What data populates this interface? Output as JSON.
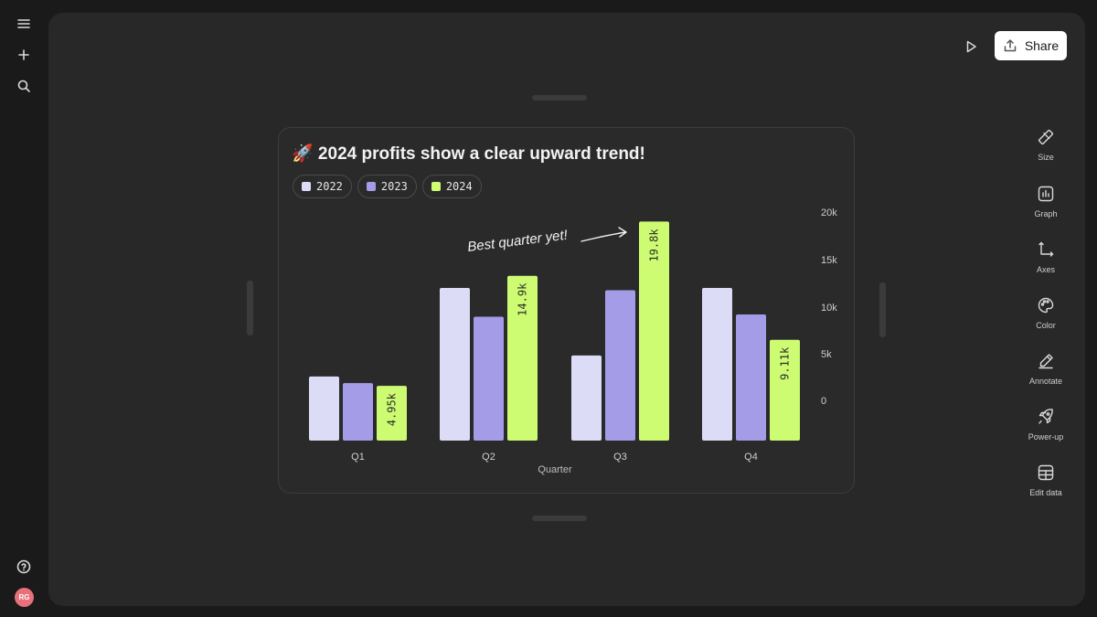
{
  "toolbar": {
    "share_label": "Share"
  },
  "user": {
    "initials": "RG",
    "avatar_color": "#e8707a"
  },
  "right_tools": [
    {
      "label": "Size",
      "icon": "ruler-icon"
    },
    {
      "label": "Graph",
      "icon": "bar-chart-icon"
    },
    {
      "label": "Axes",
      "icon": "axes-icon"
    },
    {
      "label": "Color",
      "icon": "palette-icon"
    },
    {
      "label": "Annotate",
      "icon": "pencil-icon"
    },
    {
      "label": "Power-up",
      "icon": "rocket-icon"
    },
    {
      "label": "Edit data",
      "icon": "table-icon"
    }
  ],
  "colors": {
    "c2022": "#dcdcf7",
    "c2023": "#a59ce8",
    "c2024": "#cdfc72",
    "label_text": "#2a2a2a"
  },
  "chart_data": {
    "type": "bar",
    "title": "🚀 2024 profits show a clear upward trend!",
    "xlabel": "Quarter",
    "ylabel": "",
    "categories": [
      "Q1",
      "Q2",
      "Q3",
      "Q4"
    ],
    "yticks": [
      "0",
      "5k",
      "10k",
      "15k",
      "20k"
    ],
    "ylim": [
      0,
      20000
    ],
    "series": [
      {
        "name": "2022",
        "values": [
          5800,
          13800,
          7700,
          13800
        ]
      },
      {
        "name": "2023",
        "values": [
          5200,
          11200,
          13600,
          11400
        ]
      },
      {
        "name": "2024",
        "values": [
          4950,
          14900,
          19800,
          9110
        ],
        "labels": [
          "4.95k",
          "14.9k",
          "19.8k",
          "9.11k"
        ]
      }
    ],
    "annotation": "Best quarter yet!",
    "grid": false,
    "legend_position": "top-left"
  }
}
